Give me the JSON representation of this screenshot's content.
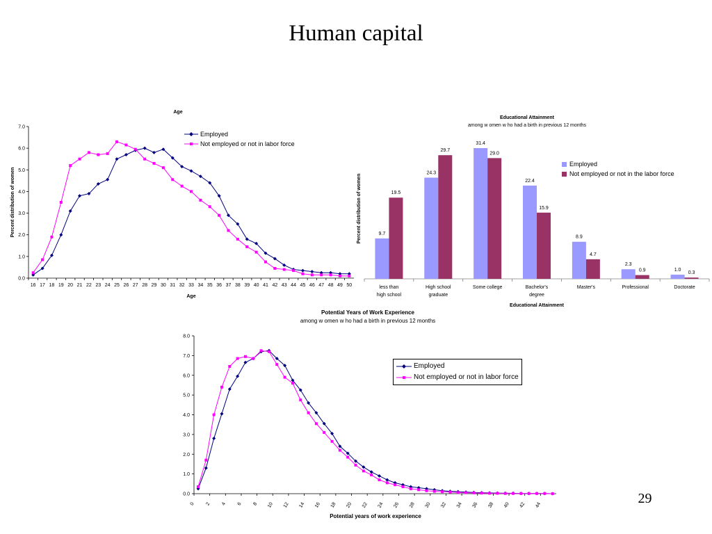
{
  "slide": {
    "title": "Human capital",
    "page_number": "29"
  },
  "colors": {
    "employed": "#000080",
    "not_employed": "#FF00FF",
    "bar_employed": "#9999FF",
    "bar_not_employed": "#993366"
  },
  "chart_data": [
    {
      "id": "age",
      "type": "line",
      "title": "Age",
      "xlabel": "Age",
      "ylabel": "Percent distribution of women",
      "ylim": [
        0,
        7
      ],
      "yticks": [
        "0.0",
        "1.0",
        "2.0",
        "3.0",
        "4.0",
        "5.0",
        "6.0",
        "7.0"
      ],
      "categories": [
        "16",
        "17",
        "18",
        "19",
        "20",
        "21",
        "22",
        "23",
        "24",
        "25",
        "26",
        "27",
        "28",
        "29",
        "30",
        "31",
        "32",
        "33",
        "34",
        "35",
        "36",
        "37",
        "38",
        "39",
        "40",
        "41",
        "42",
        "43",
        "44",
        "45",
        "46",
        "47",
        "48",
        "49",
        "50"
      ],
      "legend_position": "top-right",
      "series": [
        {
          "name": "Employed",
          "marker": "diamond",
          "values": [
            0.15,
            0.45,
            1.05,
            2.0,
            3.1,
            3.8,
            3.9,
            4.35,
            4.55,
            5.5,
            5.7,
            5.9,
            6.0,
            5.8,
            5.95,
            5.55,
            5.15,
            4.95,
            4.7,
            4.4,
            3.8,
            2.9,
            2.5,
            1.8,
            1.6,
            1.15,
            0.9,
            0.6,
            0.4,
            0.35,
            0.3,
            0.25,
            0.25,
            0.2,
            0.2
          ]
        },
        {
          "name": "Not employed or not in labor force",
          "marker": "square",
          "values": [
            0.25,
            0.85,
            1.9,
            3.5,
            5.2,
            5.5,
            5.8,
            5.7,
            5.75,
            6.3,
            6.15,
            5.95,
            5.5,
            5.3,
            5.1,
            4.55,
            4.25,
            4.0,
            3.6,
            3.3,
            2.9,
            2.2,
            1.8,
            1.45,
            1.2,
            0.75,
            0.45,
            0.4,
            0.35,
            0.2,
            0.15,
            0.15,
            0.15,
            0.1,
            0.1
          ]
        }
      ]
    },
    {
      "id": "education",
      "type": "bar",
      "title": "Educational Attainment",
      "subtitle": "among w omen w ho had a birth in previous 12 months",
      "xlabel": "Educational Attainment",
      "ylabel": "Percent distribution of women",
      "ylim": [
        0,
        31.4
      ],
      "categories": [
        "less than high school",
        "High school graduate",
        "Some college",
        "Bachelor's degree",
        "Master's",
        "Professional",
        "Doctorate"
      ],
      "legend_position": "right",
      "series": [
        {
          "name": "Employed",
          "values": [
            9.7,
            24.3,
            31.4,
            22.4,
            8.9,
            2.3,
            1.0
          ],
          "labels": [
            "9.7",
            "24.3",
            "31.4",
            "22.4",
            "8.9",
            "2.3",
            "1.0"
          ]
        },
        {
          "name": "Not employed or not in the labor force",
          "values": [
            19.5,
            29.7,
            29.0,
            15.9,
            4.7,
            0.9,
            0.3
          ],
          "labels": [
            "19.5",
            "29.7",
            "29.0",
            "15.9",
            "4.7",
            "0.9",
            "0.3"
          ]
        }
      ]
    },
    {
      "id": "experience",
      "type": "line",
      "title": "Potential Years of Work Experience",
      "subtitle": "among w omen w ho had a birth in previous 12 months",
      "xlabel": "Potential years of work experience",
      "ylabel": "",
      "ylim": [
        0,
        8
      ],
      "yticks": [
        "0.0",
        "1.0",
        "2.0",
        "3.0",
        "4.0",
        "5.0",
        "6.0",
        "7.0",
        "8.0"
      ],
      "xticks": [
        "0",
        "2",
        "4",
        "6",
        "8",
        "10",
        "12",
        "14",
        "16",
        "18",
        "20",
        "22",
        "24",
        "26",
        "28",
        "30",
        "32",
        "34",
        "36",
        "38",
        "40",
        "42",
        "44"
      ],
      "xlim": [
        0,
        46
      ],
      "x": [
        0,
        1,
        2,
        3,
        4,
        5,
        6,
        7,
        8,
        9,
        10,
        11,
        12,
        13,
        14,
        15,
        16,
        17,
        18,
        19,
        20,
        21,
        22,
        23,
        24,
        25,
        26,
        27,
        28,
        29,
        30,
        31,
        32,
        33,
        34,
        35,
        36,
        37,
        38,
        39,
        40,
        41,
        42,
        43,
        44,
        45
      ],
      "legend_position": "right",
      "series": [
        {
          "name": "Employed",
          "marker": "diamond",
          "values": [
            0.25,
            1.3,
            2.8,
            4.05,
            5.3,
            5.95,
            6.65,
            6.85,
            7.2,
            7.25,
            6.85,
            6.5,
            5.75,
            5.25,
            4.6,
            4.1,
            3.55,
            3.05,
            2.4,
            2.05,
            1.65,
            1.35,
            1.1,
            0.9,
            0.7,
            0.55,
            0.45,
            0.35,
            0.3,
            0.25,
            0.2,
            0.15,
            0.12,
            0.1,
            0.08,
            0.06,
            0.05,
            0.04,
            0.03,
            0.02,
            0.02,
            0.01,
            0.01,
            0.01,
            0.01,
            0.0
          ]
        },
        {
          "name": "Not employed or not in labor force",
          "marker": "square",
          "values": [
            0.35,
            1.7,
            4.0,
            5.4,
            6.45,
            6.85,
            6.95,
            6.85,
            7.25,
            7.2,
            6.55,
            5.9,
            5.6,
            4.75,
            4.1,
            3.55,
            3.1,
            2.65,
            2.2,
            1.85,
            1.45,
            1.15,
            0.95,
            0.7,
            0.55,
            0.45,
            0.35,
            0.25,
            0.2,
            0.15,
            0.12,
            0.1,
            0.08,
            0.06,
            0.05,
            0.04,
            0.03,
            0.02,
            0.02,
            0.01,
            0.01,
            0.01,
            0.01,
            0.01,
            0.01,
            0.0
          ]
        }
      ]
    }
  ]
}
